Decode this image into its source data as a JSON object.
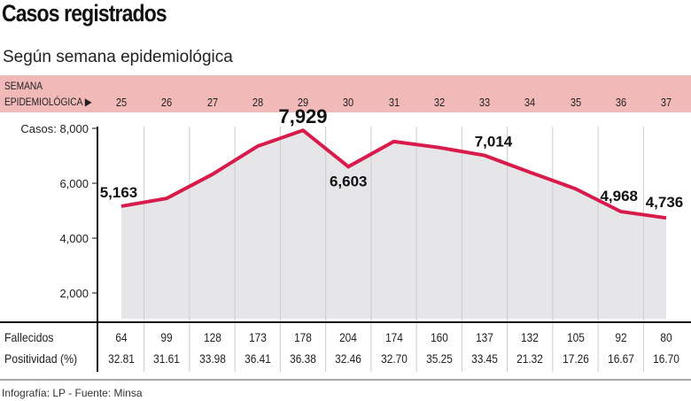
{
  "title": "Casos registrados",
  "subtitle": "Según semana epidemiológica",
  "header_band": {
    "line1": "SEMANA",
    "line2": "EPIDEMIOLÓGICA",
    "arrow_icon": "triangle-right"
  },
  "footer": "Infografía: LP - Fuente: Minsa",
  "colors": {
    "line": "#d81b4a",
    "area": "#e6e6e9",
    "band": "#f2b9b9"
  },
  "chart_data": {
    "type": "area",
    "categories": [
      "25",
      "26",
      "27",
      "28",
      "29",
      "30",
      "31",
      "32",
      "33",
      "34",
      "35",
      "36",
      "37"
    ],
    "values": [
      5163,
      5450,
      6320,
      7350,
      7929,
      6603,
      7520,
      7300,
      7014,
      6400,
      5800,
      4968,
      4736
    ],
    "data_labels": {
      "0": "5,163",
      "4": "7,929",
      "5": "6,603",
      "8": "7,014",
      "11": "4,968",
      "12": "4,736"
    },
    "yticks": [
      {
        "v": 8000,
        "label": "Casos: 8,000"
      },
      {
        "v": 6000,
        "label": "6,000"
      },
      {
        "v": 4000,
        "label": "4,000"
      },
      {
        "v": 2000,
        "label": "2,000"
      }
    ],
    "ylim": [
      0,
      8000
    ],
    "grid": "vertical"
  },
  "table": {
    "rows": [
      {
        "label": "Fallecidos",
        "values": [
          "64",
          "99",
          "128",
          "173",
          "178",
          "204",
          "174",
          "160",
          "137",
          "132",
          "105",
          "92",
          "80"
        ]
      },
      {
        "label": "Positividad (%)",
        "values": [
          "32.81",
          "31.61",
          "33.98",
          "36.41",
          "36.38",
          "32.46",
          "32.70",
          "35.25",
          "33.45",
          "21.32",
          "17.26",
          "16.67",
          "16.70"
        ]
      }
    ]
  }
}
